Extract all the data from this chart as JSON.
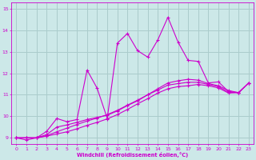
{
  "title": "",
  "xlabel": "Windchill (Refroidissement éolien,°C)",
  "bg_color": "#cce8e8",
  "grid_color": "#aacccc",
  "line_color": "#cc00cc",
  "xlim": [
    -0.5,
    23.5
  ],
  "ylim": [
    8.7,
    15.3
  ],
  "xticks": [
    0,
    1,
    2,
    3,
    4,
    5,
    6,
    7,
    8,
    9,
    10,
    11,
    12,
    13,
    14,
    15,
    16,
    17,
    18,
    19,
    20,
    21,
    22,
    23
  ],
  "yticks": [
    9,
    10,
    11,
    12,
    13,
    14,
    15
  ],
  "line1_x": [
    0,
    1,
    2,
    3,
    4,
    5,
    6,
    7,
    8,
    9,
    10,
    11,
    12,
    13,
    14,
    15,
    16,
    17,
    18,
    19,
    20,
    21,
    22,
    23
  ],
  "line1_y": [
    9.0,
    8.9,
    9.0,
    9.3,
    9.9,
    9.75,
    9.85,
    12.15,
    11.3,
    9.9,
    13.4,
    13.85,
    13.05,
    12.75,
    13.55,
    14.6,
    13.45,
    12.6,
    12.55,
    11.55,
    11.6,
    11.15,
    11.1,
    11.55
  ],
  "line2_x": [
    0,
    1,
    2,
    3,
    4,
    5,
    6,
    7,
    8,
    9,
    10,
    11,
    12,
    13,
    14,
    15,
    16,
    17,
    18,
    19,
    20,
    21,
    22,
    23
  ],
  "line2_y": [
    9.0,
    9.0,
    9.0,
    9.15,
    9.5,
    9.6,
    9.72,
    9.85,
    9.95,
    10.05,
    10.25,
    10.5,
    10.72,
    11.0,
    11.28,
    11.55,
    11.65,
    11.72,
    11.68,
    11.52,
    11.42,
    11.2,
    11.1,
    11.55
  ],
  "line3_x": [
    0,
    1,
    2,
    3,
    4,
    5,
    6,
    7,
    8,
    9,
    10,
    11,
    12,
    13,
    14,
    15,
    16,
    17,
    18,
    19,
    20,
    21,
    22,
    23
  ],
  "line3_y": [
    9.0,
    9.0,
    9.0,
    9.1,
    9.28,
    9.45,
    9.62,
    9.78,
    9.92,
    10.08,
    10.28,
    10.52,
    10.75,
    11.0,
    11.22,
    11.45,
    11.52,
    11.58,
    11.58,
    11.48,
    11.38,
    11.12,
    11.1,
    11.55
  ],
  "line4_x": [
    0,
    1,
    2,
    3,
    4,
    5,
    6,
    7,
    8,
    9,
    10,
    11,
    12,
    13,
    14,
    15,
    16,
    17,
    18,
    19,
    20,
    21,
    22,
    23
  ],
  "line4_y": [
    9.0,
    9.0,
    9.0,
    9.08,
    9.18,
    9.28,
    9.42,
    9.58,
    9.72,
    9.88,
    10.08,
    10.32,
    10.58,
    10.82,
    11.08,
    11.28,
    11.38,
    11.42,
    11.48,
    11.42,
    11.32,
    11.08,
    11.1,
    11.55
  ]
}
